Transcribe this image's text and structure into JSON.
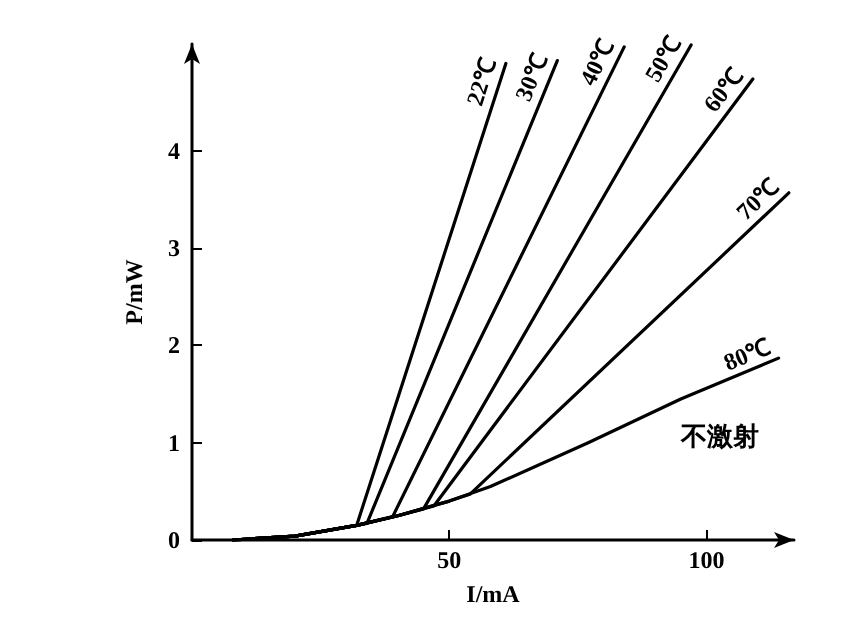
{
  "chart_data": {
    "type": "line",
    "xlabel": "I/mA",
    "ylabel": "P/mW",
    "xlim": [
      0,
      117
    ],
    "xticks": [
      50,
      100
    ],
    "ylim": [
      0,
      5.1
    ],
    "yticks": [
      0,
      1,
      2,
      3,
      4
    ],
    "grid": false,
    "legend": false,
    "marker": "none",
    "line_style": "solid",
    "series": [
      {
        "name": "22℃",
        "color": "#000000",
        "x": [
          8,
          20,
          32,
          61
        ],
        "values": [
          0,
          0.04,
          0.15,
          4.9
        ]
      },
      {
        "name": "30℃",
        "color": "#000000",
        "x": [
          8,
          20,
          32,
          34,
          71
        ],
        "values": [
          0,
          0.04,
          0.15,
          0.17,
          4.93
        ]
      },
      {
        "name": "40℃",
        "color": "#000000",
        "x": [
          8,
          20,
          32,
          39,
          84
        ],
        "values": [
          0,
          0.04,
          0.15,
          0.24,
          5.07
        ]
      },
      {
        "name": "50℃",
        "color": "#000000",
        "x": [
          8,
          20,
          32,
          40,
          45,
          97
        ],
        "values": [
          0,
          0.04,
          0.15,
          0.25,
          0.32,
          5.09
        ]
      },
      {
        "name": "60℃",
        "color": "#000000",
        "x": [
          8,
          20,
          32,
          40,
          47,
          109
        ],
        "values": [
          0,
          0.04,
          0.15,
          0.25,
          0.35,
          4.74
        ]
      },
      {
        "name": "70℃",
        "color": "#000000",
        "x": [
          8,
          20,
          32,
          40,
          50,
          54,
          116
        ],
        "values": [
          0,
          0.04,
          0.15,
          0.25,
          0.4,
          0.47,
          3.57
        ]
      },
      {
        "name": "80℃",
        "color": "#000000",
        "x": [
          8,
          20,
          32,
          40,
          50,
          58,
          77,
          95,
          114
        ],
        "values": [
          0,
          0.04,
          0.15,
          0.25,
          0.4,
          0.55,
          1.0,
          1.45,
          1.87
        ]
      }
    ],
    "annotations": [
      "不激射"
    ]
  }
}
